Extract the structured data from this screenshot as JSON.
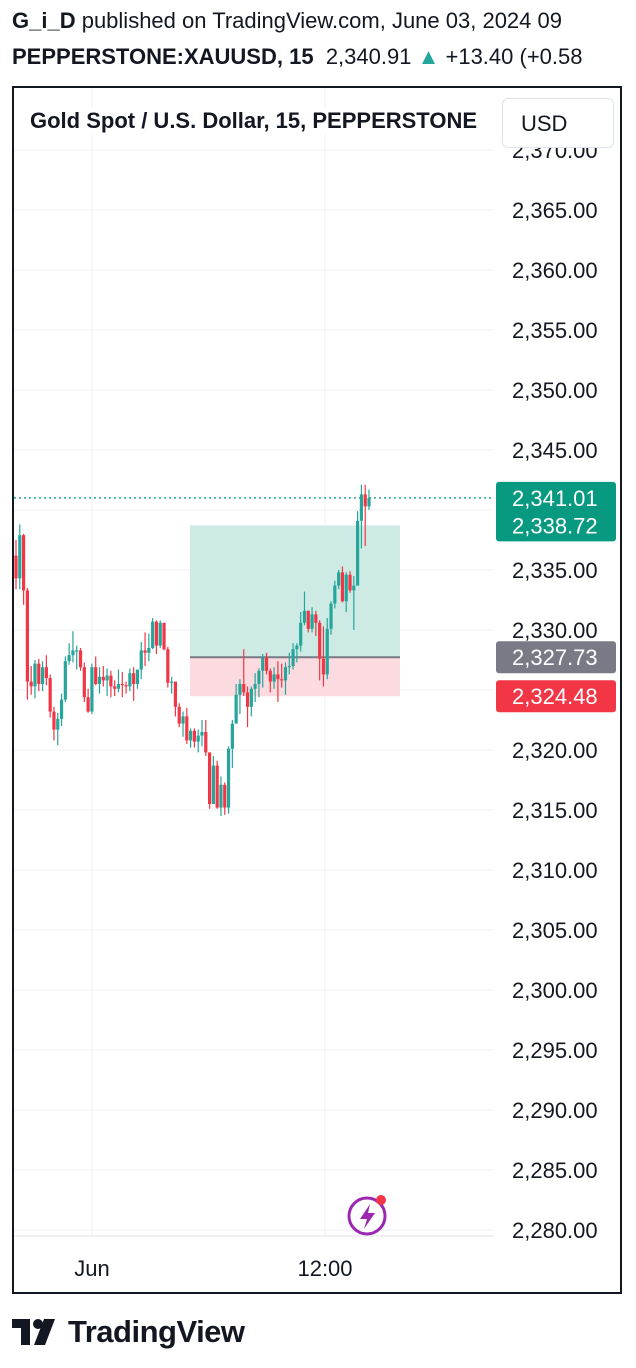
{
  "header": {
    "author": "G_i_D",
    "published_text": " published on TradingView.com, June 03, 2024 09",
    "symbol": "PEPPERSTONE:XAUUSD, 15",
    "price": "2,340.91",
    "change_arrow": "▲",
    "change": "+13.40 (+0.58"
  },
  "chart_title": "Gold Spot / U.S. Dollar, 15, PEPPERSTONE",
  "currency_button": "USD",
  "footer_logo": "TradingView",
  "colors": {
    "up": "#26a69a",
    "down": "#f23645",
    "grid": "#eef0f3",
    "profit_zone": "#cdebe4",
    "loss_zone": "#fbdbdf",
    "entry_line": "#787b86"
  },
  "chart_data": {
    "type": "candlestick",
    "title": "Gold Spot / U.S. Dollar, 15, PEPPERSTONE",
    "ylim": [
      2279.5,
      2371.5
    ],
    "y_ticks": [
      "2,280.00",
      "2,285.00",
      "2,290.00",
      "2,295.00",
      "2,300.00",
      "2,305.00",
      "2,310.00",
      "2,315.00",
      "2,320.00",
      "2,325.00",
      "2,330.00",
      "2,335.00",
      "2,340.00",
      "2,345.00",
      "2,350.00",
      "2,355.00",
      "2,360.00",
      "2,365.00",
      "2,370.00"
    ],
    "x_ticks": [
      "Jun",
      "12:00"
    ],
    "price_labels": [
      {
        "value": 2341.01,
        "text": "2,341.01",
        "color": "#089981"
      },
      {
        "value": 2338.72,
        "text": "2,338.72",
        "color": "#089981"
      },
      {
        "value": 2327.73,
        "text": "2,327.73",
        "color": "#787b86"
      },
      {
        "value": 2324.48,
        "text": "2,324.48",
        "color": "#f23645"
      }
    ],
    "position": {
      "entry": 2327.73,
      "stop": 2324.48,
      "target": 2338.72
    },
    "candles": [
      [
        2336.2,
        2337.5,
        2333.4,
        2334.3
      ],
      [
        2334.3,
        2338.8,
        2333.4,
        2337.9
      ],
      [
        2337.9,
        2338.0,
        2332.1,
        2333.3
      ],
      [
        2333.3,
        2333.5,
        2324.2,
        2325.7
      ],
      [
        2325.7,
        2327.0,
        2324.6,
        2325.3
      ],
      [
        2325.3,
        2327.5,
        2324.3,
        2327.2
      ],
      [
        2327.2,
        2327.6,
        2324.9,
        2325.5
      ],
      [
        2325.5,
        2327.4,
        2324.9,
        2326.9
      ],
      [
        2326.9,
        2327.9,
        2325.4,
        2326.0
      ],
      [
        2326.0,
        2326.3,
        2322.7,
        2323.2
      ],
      [
        2323.2,
        2323.6,
        2320.8,
        2321.7
      ],
      [
        2321.7,
        2323.1,
        2320.4,
        2322.6
      ],
      [
        2322.6,
        2324.7,
        2322.0,
        2324.2
      ],
      [
        2324.2,
        2327.8,
        2324.0,
        2327.4
      ],
      [
        2327.4,
        2328.9,
        2327.1,
        2327.9
      ],
      [
        2327.9,
        2329.9,
        2327.3,
        2328.3
      ],
      [
        2328.3,
        2328.7,
        2326.7,
        2328.3
      ],
      [
        2328.3,
        2328.5,
        2326.6,
        2326.9
      ],
      [
        2326.9,
        2327.3,
        2324.0,
        2324.4
      ],
      [
        2324.4,
        2325.1,
        2323.1,
        2323.2
      ],
      [
        2323.2,
        2327.2,
        2323.0,
        2326.9
      ],
      [
        2326.9,
        2327.8,
        2325.4,
        2325.5
      ],
      [
        2325.5,
        2326.9,
        2324.7,
        2326.1
      ],
      [
        2326.1,
        2327.0,
        2325.3,
        2325.8
      ],
      [
        2325.8,
        2326.8,
        2324.5,
        2326.2
      ],
      [
        2326.2,
        2326.6,
        2324.4,
        2325.3
      ],
      [
        2325.3,
        2325.8,
        2324.5,
        2325.1
      ],
      [
        2325.1,
        2326.7,
        2324.8,
        2325.5
      ],
      [
        2325.5,
        2326.5,
        2324.4,
        2325.4
      ],
      [
        2325.4,
        2325.7,
        2324.7,
        2325.3
      ],
      [
        2325.3,
        2326.8,
        2324.9,
        2326.4
      ],
      [
        2326.4,
        2326.9,
        2324.1,
        2325.5
      ],
      [
        2325.5,
        2326.7,
        2325.1,
        2326.7
      ],
      [
        2326.7,
        2329.0,
        2325.9,
        2328.3
      ],
      [
        2328.3,
        2329.8,
        2327.0,
        2328.1
      ],
      [
        2328.1,
        2329.7,
        2327.4,
        2328.5
      ],
      [
        2328.5,
        2331.0,
        2328.4,
        2330.7
      ],
      [
        2330.7,
        2330.8,
        2328.0,
        2328.7
      ],
      [
        2328.7,
        2330.8,
        2328.5,
        2330.6
      ],
      [
        2330.6,
        2330.6,
        2328.3,
        2328.4
      ],
      [
        2328.4,
        2328.6,
        2325.2,
        2325.6
      ],
      [
        2325.6,
        2326.1,
        2324.7,
        2325.7
      ],
      [
        2325.7,
        2325.7,
        2322.8,
        2323.6
      ],
      [
        2323.6,
        2323.9,
        2321.9,
        2322.2
      ],
      [
        2322.2,
        2323.2,
        2321.1,
        2322.8
      ],
      [
        2322.8,
        2323.5,
        2320.5,
        2320.8
      ],
      [
        2320.8,
        2321.8,
        2320.2,
        2321.6
      ],
      [
        2321.6,
        2321.8,
        2320.2,
        2320.7
      ],
      [
        2320.7,
        2321.7,
        2319.8,
        2321.2
      ],
      [
        2321.2,
        2322.5,
        2320.3,
        2321.5
      ],
      [
        2321.5,
        2322.5,
        2319.5,
        2319.8
      ],
      [
        2319.8,
        2319.8,
        2315.1,
        2315.5
      ],
      [
        2315.5,
        2319.5,
        2315.5,
        2318.7
      ],
      [
        2318.7,
        2319.1,
        2315.1,
        2315.2
      ],
      [
        2315.2,
        2317.8,
        2314.5,
        2317.1
      ],
      [
        2317.1,
        2317.3,
        2314.6,
        2315.2
      ],
      [
        2315.2,
        2320.3,
        2314.7,
        2320.1
      ],
      [
        2320.1,
        2322.5,
        2318.5,
        2322.2
      ],
      [
        2322.2,
        2325.5,
        2322.2,
        2324.6
      ],
      [
        2324.6,
        2325.9,
        2323.0,
        2325.5
      ],
      [
        2325.5,
        2328.4,
        2324.5,
        2324.8
      ],
      [
        2324.8,
        2325.3,
        2321.9,
        2323.6
      ],
      [
        2323.6,
        2325.3,
        2322.8,
        2325.1
      ],
      [
        2325.1,
        2326.4,
        2324.0,
        2325.5
      ],
      [
        2325.5,
        2326.8,
        2324.4,
        2326.6
      ],
      [
        2326.6,
        2328.0,
        2325.2,
        2327.7
      ],
      [
        2327.7,
        2328.1,
        2326.3,
        2326.6
      ],
      [
        2326.6,
        2326.8,
        2324.8,
        2325.7
      ],
      [
        2325.7,
        2326.9,
        2325.1,
        2326.3
      ],
      [
        2326.3,
        2327.4,
        2324.0,
        2325.9
      ],
      [
        2325.9,
        2327.2,
        2325.2,
        2325.8
      ],
      [
        2325.8,
        2327.3,
        2324.6,
        2326.9
      ],
      [
        2326.9,
        2328.1,
        2326.3,
        2327.0
      ],
      [
        2327.0,
        2328.9,
        2326.7,
        2328.4
      ],
      [
        2328.4,
        2328.9,
        2327.3,
        2328.7
      ],
      [
        2328.7,
        2331.5,
        2328.2,
        2330.6
      ],
      [
        2330.6,
        2333.2,
        2330.4,
        2331.6
      ],
      [
        2331.6,
        2331.6,
        2329.8,
        2330.1
      ],
      [
        2330.1,
        2331.9,
        2329.8,
        2331.3
      ],
      [
        2331.3,
        2331.6,
        2329.5,
        2330.6
      ],
      [
        2330.6,
        2330.8,
        2325.8,
        2327.6
      ],
      [
        2327.6,
        2330.3,
        2325.3,
        2326.3
      ],
      [
        2326.3,
        2331.0,
        2325.9,
        2330.1
      ],
      [
        2330.1,
        2332.4,
        2329.6,
        2332.2
      ],
      [
        2332.2,
        2334.1,
        2331.8,
        2333.7
      ],
      [
        2333.7,
        2335.0,
        2333.4,
        2334.8
      ],
      [
        2334.8,
        2335.3,
        2332.3,
        2332.4
      ],
      [
        2332.4,
        2334.8,
        2331.5,
        2334.6
      ],
      [
        2334.6,
        2334.9,
        2333.1,
        2333.3
      ],
      [
        2333.3,
        2334.5,
        2330.0,
        2333.7
      ],
      [
        2333.7,
        2339.9,
        2333.7,
        2339.1
      ],
      [
        2339.1,
        2342.1,
        2336.8,
        2341.3
      ],
      [
        2341.3,
        2342.1,
        2337.0,
        2340.3
      ],
      [
        2340.3,
        2341.7,
        2340.0,
        2341.0
      ]
    ]
  }
}
